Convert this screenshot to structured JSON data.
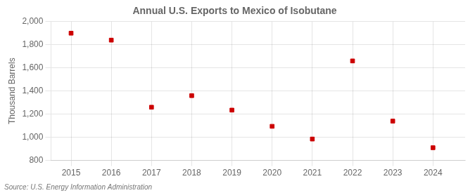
{
  "chart_data": {
    "type": "scatter",
    "title": "Annual U.S. Exports to Mexico of Isobutane",
    "ylabel": "Thousand Barrels",
    "annotations": [
      "Source: U.S. Energy Information Administration"
    ],
    "x": [
      2015,
      2016,
      2017,
      2018,
      2019,
      2020,
      2021,
      2022,
      2023,
      2024
    ],
    "values": [
      1900,
      1840,
      1260,
      1360,
      1235,
      1095,
      985,
      1660,
      1140,
      910
    ],
    "color": "#cc0000",
    "marker": "square",
    "xlim": [
      2014.5,
      2024.8
    ],
    "xticks": [
      2015,
      2016,
      2017,
      2018,
      2019,
      2020,
      2021,
      2022,
      2023,
      2024
    ],
    "ylim": [
      800,
      2000
    ],
    "yticks": [
      800,
      {
        "value": 1000,
        "label": "1,000"
      },
      {
        "value": 1200,
        "label": "1,200"
      },
      {
        "value": 1400,
        "label": "1,400"
      },
      {
        "value": 1600,
        "label": "1,600"
      },
      {
        "value": 1800,
        "label": "1,800"
      },
      {
        "value": 2000,
        "label": "2,000"
      }
    ],
    "grid": true
  }
}
